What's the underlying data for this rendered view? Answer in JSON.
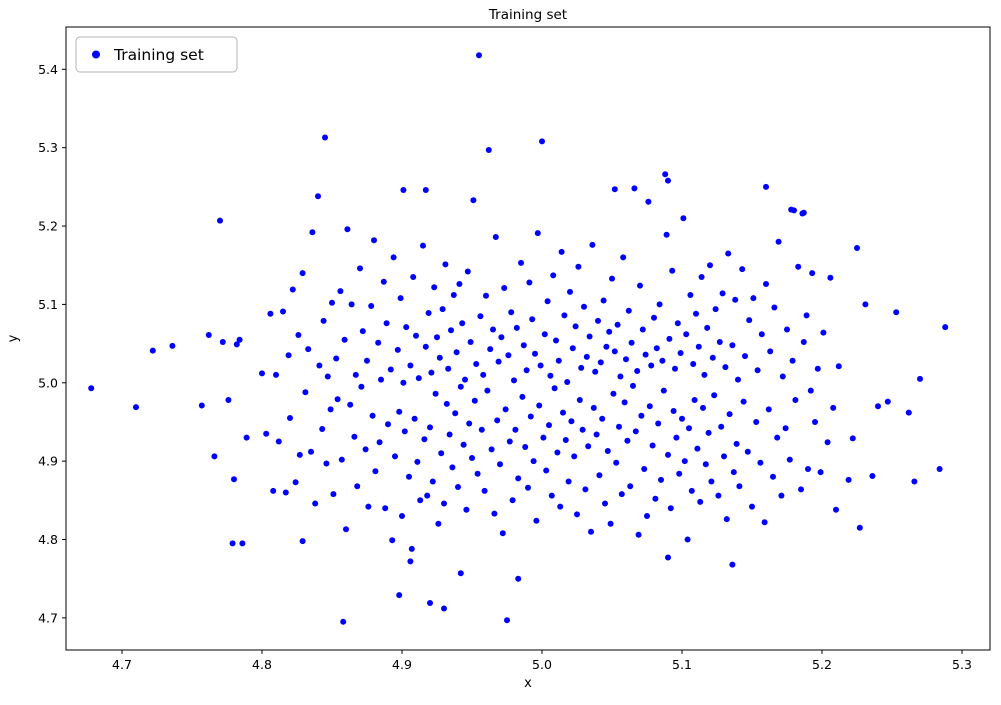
{
  "figure": {
    "background": "#ffffff"
  },
  "chart_data": {
    "type": "scatter",
    "title": "Training set",
    "xlabel": "x",
    "ylabel": "y",
    "xlim": [
      4.66,
      5.32
    ],
    "ylim": [
      4.659,
      5.454
    ],
    "xticks": [
      4.7,
      4.8,
      4.9,
      5.0,
      5.1,
      5.2,
      5.3
    ],
    "yticks": [
      4.7,
      4.8,
      4.9,
      5.0,
      5.1,
      5.2,
      5.3,
      5.4
    ],
    "grid": false,
    "legend": {
      "label": "Training set",
      "position": "upper left"
    },
    "marker": {
      "color": "#0000ff",
      "size": 3
    },
    "points": [
      [
        4.678,
        4.993
      ],
      [
        4.71,
        4.969
      ],
      [
        4.722,
        5.041
      ],
      [
        4.736,
        5.047
      ],
      [
        4.757,
        4.971
      ],
      [
        4.762,
        5.061
      ],
      [
        4.766,
        4.906
      ],
      [
        4.77,
        5.207
      ],
      [
        4.772,
        5.052
      ],
      [
        4.776,
        4.978
      ],
      [
        4.78,
        4.877
      ],
      [
        4.782,
        5.049
      ],
      [
        4.784,
        5.055
      ],
      [
        4.786,
        4.795
      ],
      [
        4.789,
        4.93
      ],
      [
        5.288,
        5.071
      ],
      [
        5.27,
        5.005
      ],
      [
        5.266,
        4.874
      ],
      [
        5.262,
        4.962
      ],
      [
        5.253,
        5.09
      ],
      [
        5.247,
        4.976
      ],
      [
        5.24,
        4.97
      ],
      [
        5.236,
        4.881
      ],
      [
        5.231,
        5.1
      ],
      [
        5.227,
        4.815
      ],
      [
        5.225,
        5.172
      ],
      [
        5.222,
        4.929
      ],
      [
        5.219,
        4.876
      ],
      [
        5.212,
        5.021
      ],
      [
        5.284,
        4.89
      ],
      [
        4.955,
        5.418
      ],
      [
        4.845,
        5.313
      ],
      [
        5.0,
        5.308
      ],
      [
        4.962,
        5.297
      ],
      [
        5.088,
        5.266
      ],
      [
        5.16,
        5.25
      ],
      [
        4.901,
        5.246
      ],
      [
        4.917,
        5.246
      ],
      [
        5.052,
        5.247
      ],
      [
        5.178,
        5.221
      ],
      [
        5.186,
        5.216
      ],
      [
        5.09,
        5.258
      ],
      [
        5.18,
        5.22
      ],
      [
        5.187,
        5.217
      ],
      [
        4.858,
        4.695
      ],
      [
        4.975,
        4.697
      ],
      [
        4.93,
        4.712
      ],
      [
        4.92,
        4.719
      ],
      [
        4.898,
        4.729
      ],
      [
        4.942,
        4.757
      ],
      [
        4.906,
        4.772
      ],
      [
        4.983,
        4.75
      ],
      [
        5.09,
        4.777
      ],
      [
        5.136,
        4.768
      ],
      [
        4.779,
        4.795
      ],
      [
        4.829,
        4.798
      ],
      [
        5.104,
        4.8
      ],
      [
        4.8,
        5.012
      ],
      [
        4.803,
        4.935
      ],
      [
        4.806,
        5.088
      ],
      [
        4.808,
        4.862
      ],
      [
        4.81,
        5.01
      ],
      [
        4.812,
        4.925
      ],
      [
        4.815,
        5.091
      ],
      [
        4.817,
        4.86
      ],
      [
        4.819,
        5.035
      ],
      [
        4.82,
        4.955
      ],
      [
        4.822,
        5.119
      ],
      [
        4.824,
        4.873
      ],
      [
        4.826,
        5.061
      ],
      [
        4.827,
        4.908
      ],
      [
        4.829,
        5.14
      ],
      [
        4.831,
        4.988
      ],
      [
        4.833,
        5.043
      ],
      [
        4.835,
        4.912
      ],
      [
        4.836,
        5.192
      ],
      [
        4.838,
        4.846
      ],
      [
        4.84,
        5.238
      ],
      [
        4.841,
        5.022
      ],
      [
        4.843,
        4.941
      ],
      [
        4.844,
        5.079
      ],
      [
        4.846,
        4.897
      ],
      [
        4.847,
        5.008
      ],
      [
        4.849,
        4.966
      ],
      [
        4.85,
        5.102
      ],
      [
        4.851,
        4.858
      ],
      [
        4.853,
        5.031
      ],
      [
        4.854,
        4.979
      ],
      [
        4.856,
        5.117
      ],
      [
        4.857,
        4.902
      ],
      [
        4.859,
        5.055
      ],
      [
        4.86,
        4.813
      ],
      [
        4.861,
        5.196
      ],
      [
        4.863,
        4.972
      ],
      [
        4.864,
        5.1
      ],
      [
        4.866,
        4.931
      ],
      [
        4.867,
        5.01
      ],
      [
        4.868,
        4.868
      ],
      [
        4.87,
        5.146
      ],
      [
        4.871,
        4.995
      ],
      [
        4.872,
        5.066
      ],
      [
        4.874,
        4.915
      ],
      [
        4.875,
        5.028
      ],
      [
        4.876,
        4.842
      ],
      [
        4.878,
        5.098
      ],
      [
        4.879,
        4.958
      ],
      [
        4.88,
        5.182
      ],
      [
        4.881,
        4.887
      ],
      [
        4.883,
        5.051
      ],
      [
        4.884,
        4.924
      ],
      [
        4.885,
        5.004
      ],
      [
        4.887,
        5.129
      ],
      [
        4.888,
        4.84
      ],
      [
        4.889,
        5.076
      ],
      [
        4.89,
        4.947
      ],
      [
        4.892,
        5.017
      ],
      [
        4.893,
        4.799
      ],
      [
        4.894,
        5.16
      ],
      [
        4.895,
        4.906
      ],
      [
        4.897,
        5.042
      ],
      [
        4.898,
        4.963
      ],
      [
        4.899,
        5.108
      ],
      [
        4.9,
        4.83
      ],
      [
        4.901,
        5.0
      ],
      [
        4.902,
        4.938
      ],
      [
        4.903,
        5.071
      ],
      [
        4.905,
        4.88
      ],
      [
        4.906,
        5.022
      ],
      [
        4.907,
        4.788
      ],
      [
        4.908,
        5.135
      ],
      [
        4.909,
        4.954
      ],
      [
        4.91,
        5.06
      ],
      [
        4.911,
        4.899
      ],
      [
        4.912,
        5.006
      ],
      [
        4.913,
        4.85
      ],
      [
        4.915,
        5.175
      ],
      [
        4.916,
        4.928
      ],
      [
        4.917,
        5.046
      ],
      [
        4.918,
        4.856
      ],
      [
        4.919,
        5.089
      ],
      [
        4.92,
        4.943
      ],
      [
        4.921,
        5.013
      ],
      [
        4.922,
        4.874
      ],
      [
        4.923,
        5.122
      ],
      [
        4.924,
        4.986
      ],
      [
        4.925,
        5.058
      ],
      [
        4.926,
        4.82
      ],
      [
        4.927,
        5.032
      ],
      [
        4.928,
        4.91
      ],
      [
        4.929,
        5.094
      ],
      [
        4.93,
        4.846
      ],
      [
        4.931,
        5.151
      ],
      [
        4.932,
        4.973
      ],
      [
        4.933,
        5.018
      ],
      [
        4.934,
        4.934
      ],
      [
        4.935,
        5.067
      ],
      [
        4.936,
        4.892
      ],
      [
        4.937,
        5.112
      ],
      [
        4.938,
        4.961
      ],
      [
        4.939,
        5.039
      ],
      [
        4.94,
        4.867
      ],
      [
        4.941,
        5.126
      ],
      [
        4.942,
        4.995
      ],
      [
        4.943,
        5.076
      ],
      [
        4.944,
        4.921
      ],
      [
        4.945,
        5.004
      ],
      [
        4.946,
        4.838
      ],
      [
        4.947,
        5.142
      ],
      [
        4.948,
        4.948
      ],
      [
        4.949,
        5.052
      ],
      [
        4.95,
        4.904
      ],
      [
        4.951,
        5.233
      ],
      [
        4.952,
        4.977
      ],
      [
        4.953,
        5.024
      ],
      [
        4.954,
        4.884
      ],
      [
        4.956,
        5.085
      ],
      [
        4.957,
        4.94
      ],
      [
        4.958,
        5.01
      ],
      [
        4.959,
        4.862
      ],
      [
        4.96,
        5.111
      ],
      [
        4.961,
        4.99
      ],
      [
        4.963,
        5.043
      ],
      [
        4.964,
        4.915
      ],
      [
        4.965,
        5.068
      ],
      [
        4.966,
        4.833
      ],
      [
        4.967,
        5.186
      ],
      [
        4.968,
        4.952
      ],
      [
        4.969,
        5.027
      ],
      [
        4.97,
        4.896
      ],
      [
        4.971,
        5.058
      ],
      [
        4.972,
        4.808
      ],
      [
        4.973,
        5.121
      ],
      [
        4.974,
        4.966
      ],
      [
        4.976,
        5.035
      ],
      [
        4.977,
        4.925
      ],
      [
        4.978,
        5.09
      ],
      [
        4.979,
        4.85
      ],
      [
        4.98,
        5.003
      ],
      [
        4.981,
        4.94
      ],
      [
        4.982,
        5.07
      ],
      [
        4.983,
        4.878
      ],
      [
        4.985,
        5.153
      ],
      [
        4.986,
        4.982
      ],
      [
        4.987,
        5.048
      ],
      [
        4.988,
        4.918
      ],
      [
        4.989,
        5.016
      ],
      [
        4.99,
        4.866
      ],
      [
        4.991,
        5.128
      ],
      [
        4.992,
        4.957
      ],
      [
        4.993,
        5.081
      ],
      [
        4.994,
        4.9
      ],
      [
        4.995,
        5.037
      ],
      [
        4.996,
        4.824
      ],
      [
        4.997,
        5.191
      ],
      [
        4.998,
        4.971
      ],
      [
        4.999,
        5.022
      ],
      [
        5.001,
        4.93
      ],
      [
        5.002,
        5.062
      ],
      [
        5.003,
        4.888
      ],
      [
        5.004,
        5.104
      ],
      [
        5.005,
        4.946
      ],
      [
        5.006,
        5.009
      ],
      [
        5.007,
        4.856
      ],
      [
        5.008,
        5.137
      ],
      [
        5.009,
        4.993
      ],
      [
        5.01,
        5.054
      ],
      [
        5.011,
        4.911
      ],
      [
        5.012,
        5.028
      ],
      [
        5.013,
        4.842
      ],
      [
        5.014,
        5.167
      ],
      [
        5.015,
        4.962
      ],
      [
        5.016,
        5.086
      ],
      [
        5.017,
        4.927
      ],
      [
        5.018,
        5.001
      ],
      [
        5.019,
        4.874
      ],
      [
        5.02,
        5.116
      ],
      [
        5.021,
        4.951
      ],
      [
        5.022,
        5.044
      ],
      [
        5.023,
        4.906
      ],
      [
        5.024,
        5.072
      ],
      [
        5.025,
        4.832
      ],
      [
        5.026,
        5.148
      ],
      [
        5.027,
        4.978
      ],
      [
        5.028,
        5.019
      ],
      [
        5.029,
        4.94
      ],
      [
        5.03,
        5.097
      ],
      [
        5.031,
        4.864
      ],
      [
        5.032,
        5.033
      ],
      [
        5.033,
        4.919
      ],
      [
        5.034,
        5.059
      ],
      [
        5.035,
        4.81
      ],
      [
        5.036,
        5.176
      ],
      [
        5.037,
        4.968
      ],
      [
        5.038,
        5.014
      ],
      [
        5.039,
        4.934
      ],
      [
        5.04,
        5.079
      ],
      [
        5.041,
        4.882
      ],
      [
        5.042,
        5.026
      ],
      [
        5.043,
        4.954
      ],
      [
        5.044,
        5.105
      ],
      [
        5.045,
        4.846
      ],
      [
        5.046,
        5.046
      ],
      [
        5.047,
        4.913
      ],
      [
        5.048,
        5.065
      ],
      [
        5.049,
        4.82
      ],
      [
        5.05,
        5.133
      ],
      [
        5.051,
        4.986
      ],
      [
        5.052,
        5.04
      ],
      [
        5.053,
        4.898
      ],
      [
        5.054,
        5.074
      ],
      [
        5.055,
        4.944
      ],
      [
        5.056,
        5.008
      ],
      [
        5.057,
        4.858
      ],
      [
        5.058,
        5.16
      ],
      [
        5.059,
        4.975
      ],
      [
        5.06,
        5.03
      ],
      [
        5.061,
        4.926
      ],
      [
        5.062,
        5.092
      ],
      [
        5.063,
        4.868
      ],
      [
        5.064,
        5.051
      ],
      [
        5.065,
        4.996
      ],
      [
        5.066,
        5.248
      ],
      [
        5.067,
        4.938
      ],
      [
        5.068,
        5.015
      ],
      [
        5.069,
        4.806
      ],
      [
        5.07,
        5.124
      ],
      [
        5.071,
        4.958
      ],
      [
        5.072,
        5.068
      ],
      [
        5.073,
        4.89
      ],
      [
        5.074,
        5.036
      ],
      [
        5.075,
        4.83
      ],
      [
        5.076,
        5.231
      ],
      [
        5.077,
        4.97
      ],
      [
        5.078,
        5.022
      ],
      [
        5.079,
        4.92
      ],
      [
        5.08,
        5.083
      ],
      [
        5.081,
        4.852
      ],
      [
        5.082,
        5.044
      ],
      [
        5.083,
        4.948
      ],
      [
        5.084,
        5.1
      ],
      [
        5.085,
        4.876
      ],
      [
        5.086,
        5.028
      ],
      [
        5.087,
        4.99
      ],
      [
        5.089,
        5.189
      ],
      [
        5.09,
        4.908
      ],
      [
        5.091,
        5.056
      ],
      [
        5.092,
        4.84
      ],
      [
        5.093,
        5.143
      ],
      [
        5.094,
        4.964
      ],
      [
        5.095,
        5.018
      ],
      [
        5.096,
        4.93
      ],
      [
        5.097,
        5.076
      ],
      [
        5.098,
        4.884
      ],
      [
        5.099,
        5.038
      ],
      [
        5.1,
        4.954
      ],
      [
        5.101,
        5.21
      ],
      [
        5.102,
        4.9
      ],
      [
        5.103,
        5.062
      ],
      [
        5.105,
        4.942
      ],
      [
        5.106,
        5.112
      ],
      [
        5.107,
        4.862
      ],
      [
        5.108,
        5.024
      ],
      [
        5.109,
        4.978
      ],
      [
        5.11,
        5.088
      ],
      [
        5.111,
        4.916
      ],
      [
        5.112,
        5.046
      ],
      [
        5.113,
        4.848
      ],
      [
        5.114,
        5.135
      ],
      [
        5.115,
        4.968
      ],
      [
        5.116,
        5.01
      ],
      [
        5.117,
        4.896
      ],
      [
        5.118,
        5.07
      ],
      [
        5.119,
        4.936
      ],
      [
        5.12,
        5.15
      ],
      [
        5.121,
        4.874
      ],
      [
        5.122,
        5.032
      ],
      [
        5.123,
        4.984
      ],
      [
        5.124,
        5.094
      ],
      [
        5.126,
        4.856
      ],
      [
        5.127,
        5.052
      ],
      [
        5.128,
        4.944
      ],
      [
        5.129,
        5.114
      ],
      [
        5.13,
        4.906
      ],
      [
        5.131,
        5.02
      ],
      [
        5.132,
        4.826
      ],
      [
        5.133,
        5.165
      ],
      [
        5.134,
        4.96
      ],
      [
        5.136,
        5.048
      ],
      [
        5.137,
        4.886
      ],
      [
        5.138,
        5.106
      ],
      [
        5.139,
        4.922
      ],
      [
        5.14,
        5.004
      ],
      [
        5.141,
        4.868
      ],
      [
        5.143,
        5.145
      ],
      [
        5.144,
        4.976
      ],
      [
        5.145,
        5.034
      ],
      [
        5.147,
        4.912
      ],
      [
        5.148,
        5.08
      ],
      [
        5.15,
        4.842
      ],
      [
        5.151,
        5.108
      ],
      [
        5.153,
        4.95
      ],
      [
        5.154,
        5.016
      ],
      [
        5.156,
        4.898
      ],
      [
        5.157,
        5.062
      ],
      [
        5.159,
        4.822
      ],
      [
        5.16,
        5.126
      ],
      [
        5.162,
        4.966
      ],
      [
        5.163,
        5.04
      ],
      [
        5.165,
        4.88
      ],
      [
        5.166,
        5.096
      ],
      [
        5.168,
        4.93
      ],
      [
        5.169,
        5.18
      ],
      [
        5.171,
        4.856
      ],
      [
        5.172,
        5.008
      ],
      [
        5.174,
        4.942
      ],
      [
        5.175,
        5.068
      ],
      [
        5.177,
        4.902
      ],
      [
        5.179,
        5.028
      ],
      [
        5.181,
        4.978
      ],
      [
        5.183,
        5.148
      ],
      [
        5.185,
        4.864
      ],
      [
        5.187,
        5.052
      ],
      [
        5.189,
        5.086
      ],
      [
        5.19,
        4.89
      ],
      [
        5.192,
        4.99
      ],
      [
        5.193,
        5.14
      ],
      [
        5.195,
        4.95
      ],
      [
        5.197,
        5.018
      ],
      [
        5.199,
        4.886
      ],
      [
        5.201,
        5.064
      ],
      [
        5.204,
        4.924
      ],
      [
        5.206,
        5.134
      ],
      [
        5.208,
        4.968
      ],
      [
        5.21,
        4.838
      ]
    ]
  }
}
